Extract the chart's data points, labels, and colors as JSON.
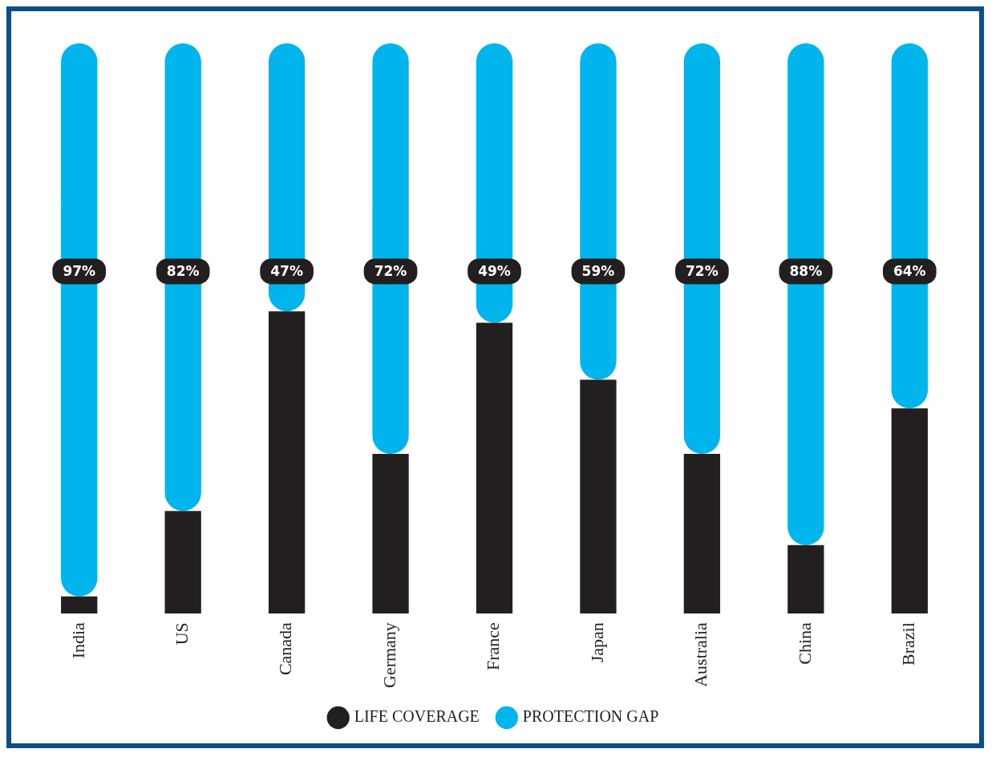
{
  "chart_data": {
    "type": "bar",
    "stacked": true,
    "legend": "bottom",
    "tick_labels": "x",
    "categories": [
      "India",
      "US",
      "Canada",
      "Germany",
      "France",
      "Japan",
      "Australia",
      "China",
      "Brazil"
    ],
    "series": [
      {
        "name": "LIFE COVERAGE",
        "color": "#231f20",
        "values": [
          3,
          18,
          53,
          28,
          51,
          41,
          28,
          12,
          36
        ]
      },
      {
        "name": "PROTECTION GAP",
        "color": "#00b4ec",
        "values": [
          97,
          82,
          47,
          72,
          49,
          59,
          72,
          88,
          64
        ],
        "value_labels": [
          "97%",
          "82%",
          "47%",
          "72%",
          "49%",
          "59%",
          "72%",
          "88%",
          "64%"
        ]
      }
    ]
  }
}
